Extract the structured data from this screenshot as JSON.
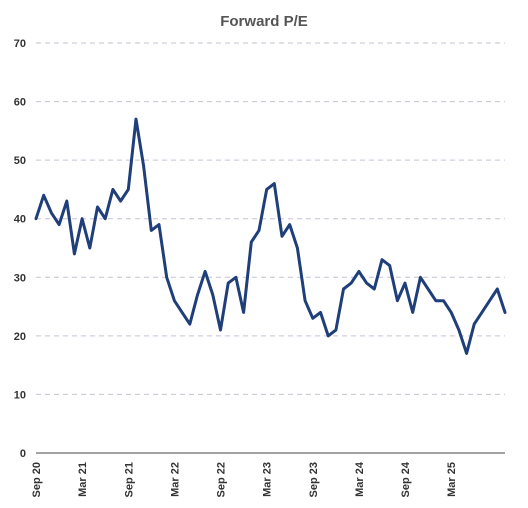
{
  "chart_data": {
    "type": "line",
    "title": "Forward P/E",
    "xlabel": "",
    "ylabel": "",
    "ylim": [
      0,
      70
    ],
    "yticks": [
      0,
      10,
      20,
      30,
      40,
      50,
      60,
      70
    ],
    "grid": true,
    "legend": "none",
    "line_color": "#1f3f7a",
    "xticks": [
      "Sep 20",
      "Mar 21",
      "Sep 21",
      "Mar 22",
      "Sep 22",
      "Mar 23",
      "Sep 23",
      "Mar 24",
      "Sep 24",
      "Mar 25"
    ],
    "x_range": [
      "2020-09",
      "2025-10"
    ],
    "series": [
      {
        "x": [
          "2020-09",
          "2020-10",
          "2020-11",
          "2020-12",
          "2021-01",
          "2021-02",
          "2021-03",
          "2021-04",
          "2021-05",
          "2021-06",
          "2021-07",
          "2021-08",
          "2021-09",
          "2021-10",
          "2021-11",
          "2021-12",
          "2022-01",
          "2022-02",
          "2022-03",
          "2022-04",
          "2022-05",
          "2022-06",
          "2022-07",
          "2022-08",
          "2022-09",
          "2022-10",
          "2022-11",
          "2022-12",
          "2023-01",
          "2023-02",
          "2023-03",
          "2023-04",
          "2023-05",
          "2023-06",
          "2023-07",
          "2023-08",
          "2023-09",
          "2023-10",
          "2023-11",
          "2023-12",
          "2024-01",
          "2024-02",
          "2024-03",
          "2024-04",
          "2024-05",
          "2024-06",
          "2024-07",
          "2024-08",
          "2024-09",
          "2024-10",
          "2024-11",
          "2024-12",
          "2025-01",
          "2025-02",
          "2025-03",
          "2025-04",
          "2025-05",
          "2025-06",
          "2025-07",
          "2025-08",
          "2025-09",
          "2025-10"
        ],
        "values": [
          40,
          44,
          41,
          39,
          43,
          34,
          40,
          35,
          42,
          40,
          45,
          43,
          45,
          57,
          49,
          38,
          39,
          30,
          26,
          24,
          22,
          27,
          31,
          27,
          21,
          29,
          30,
          24,
          36,
          38,
          45,
          46,
          37,
          39,
          35,
          26,
          23,
          24,
          20,
          21,
          28,
          29,
          31,
          29,
          28,
          33,
          32,
          26,
          29,
          24,
          30,
          28,
          26,
          26,
          24,
          21,
          17,
          22,
          24,
          26,
          28,
          24
        ]
      }
    ]
  }
}
